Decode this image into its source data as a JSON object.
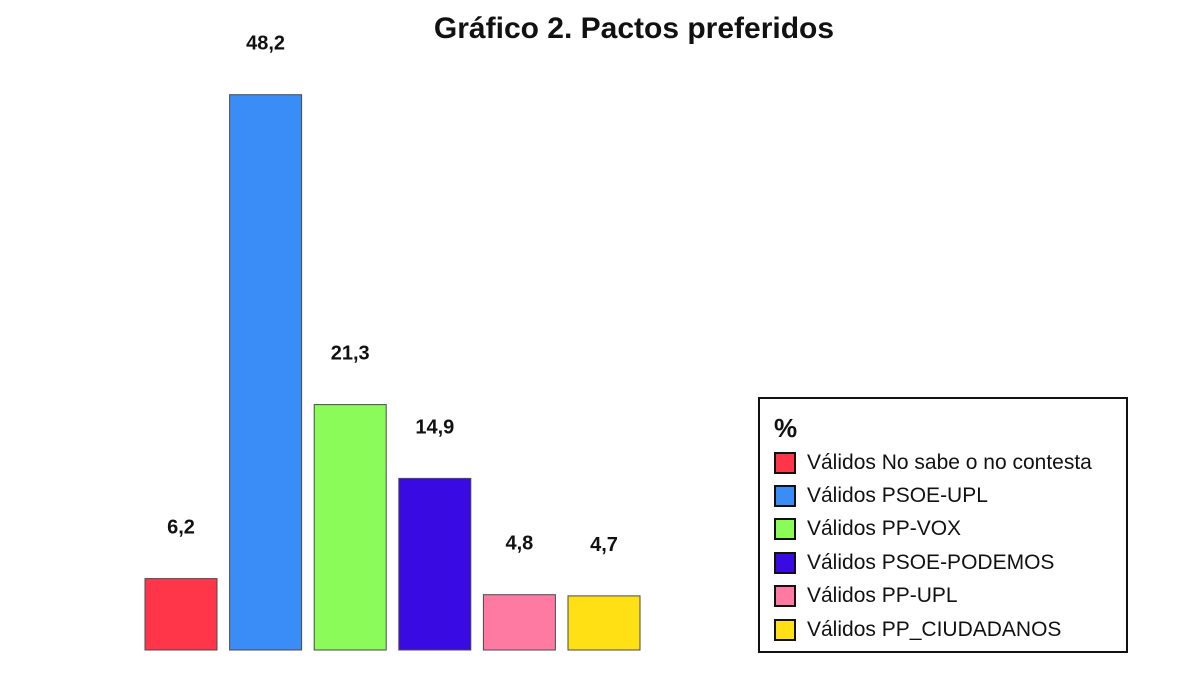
{
  "chart_data": {
    "type": "bar",
    "title": "Gráfico 2. Pactos preferidos",
    "xlabel": "",
    "ylabel": "",
    "ylim": [
      0,
      50
    ],
    "grid": false,
    "legend_position": "bottom-right",
    "legend_title": "%",
    "categories": [
      "Válidos No sabe o no contesta",
      "Válidos PSOE-UPL",
      "Válidos PP-VOX",
      "Válidos PSOE-PODEMOS",
      "Válidos PP-UPL",
      "Válidos PP_CIUDADANOS"
    ],
    "values": [
      6.2,
      48.2,
      21.3,
      14.9,
      4.8,
      4.7
    ],
    "value_labels": [
      "6,2",
      "48,2",
      "21,3",
      "14,9",
      "4,8",
      "4,7"
    ],
    "colors": [
      "#ff3549",
      "#3a8cf7",
      "#8bfb5a",
      "#3a0ae2",
      "#ff7aa3",
      "#ffe014"
    ]
  }
}
